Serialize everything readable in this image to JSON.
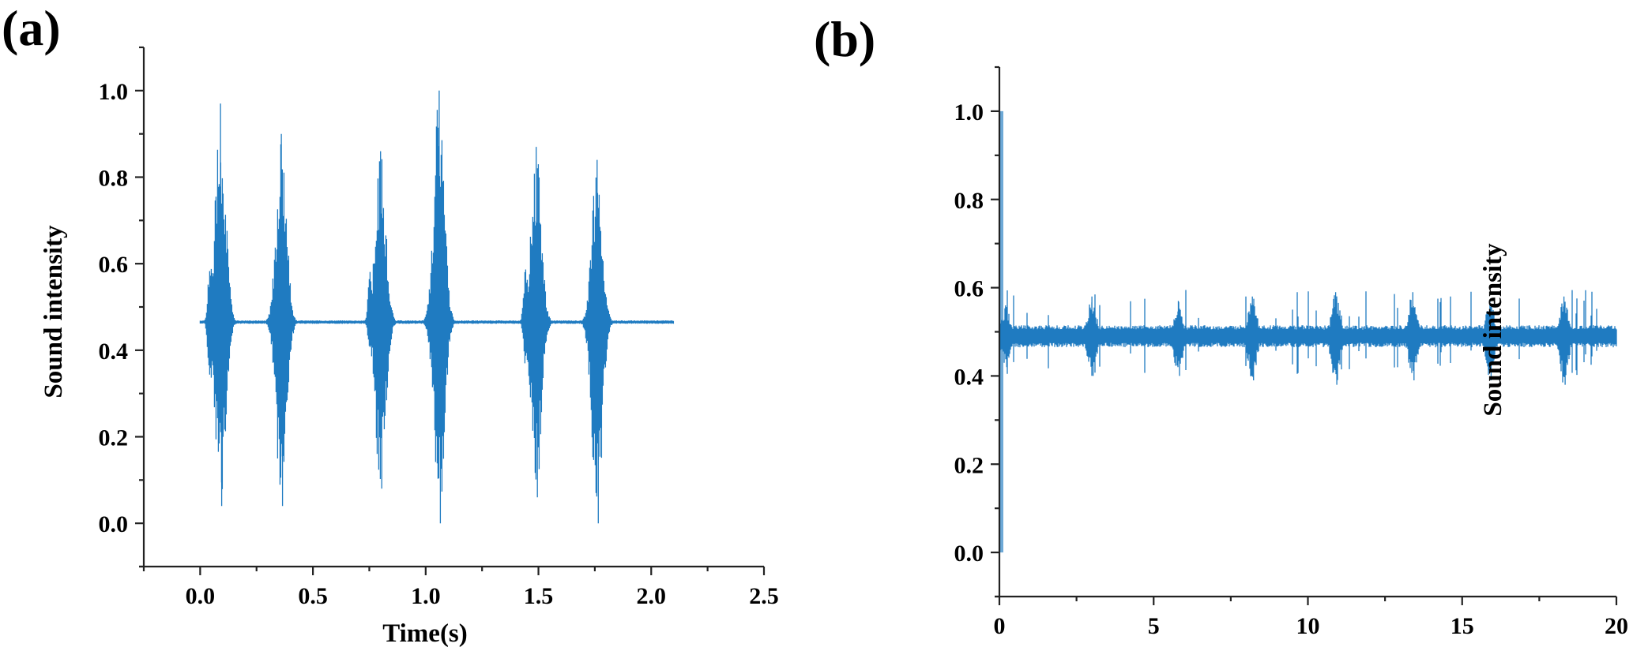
{
  "figure": {
    "panels": [
      {
        "label": "(a)"
      },
      {
        "label": "(b)"
      }
    ]
  },
  "colors": {
    "waveform": "#1f7bc1",
    "axis": "#222222"
  },
  "chart_data": [
    {
      "panel": "(a)",
      "type": "line",
      "title": "",
      "xlabel": "Time(s)",
      "ylabel": "Sound intensity",
      "xlim": [
        -0.25,
        2.5
      ],
      "ylim": [
        -0.1,
        1.1
      ],
      "xticks": [
        0.0,
        0.5,
        1.0,
        1.5,
        2.0,
        2.5
      ],
      "xtick_labels": [
        "0.0",
        "0.5",
        "1.0",
        "1.5",
        "2.0",
        "2.5"
      ],
      "yticks": [
        0.0,
        0.2,
        0.4,
        0.6,
        0.8,
        1.0
      ],
      "ytick_labels": [
        "0.0",
        "0.2",
        "0.4",
        "0.6",
        "0.8",
        "1.0"
      ],
      "grid": false,
      "legend": null,
      "signal_range": [
        0.0,
        2.1
      ],
      "baseline": 0.465,
      "bursts": [
        {
          "time": 0.09,
          "max": 0.97,
          "min": 0.04,
          "precursor_max": 0.62,
          "precursor_min": 0.31
        },
        {
          "time": 0.36,
          "max": 0.9,
          "min": 0.04
        },
        {
          "time": 0.8,
          "max": 0.86,
          "min": 0.08,
          "precursor_max": 0.59,
          "precursor_min": 0.39
        },
        {
          "time": 1.06,
          "max": 1.0,
          "min": 0.0
        },
        {
          "time": 1.49,
          "max": 0.87,
          "min": 0.06,
          "precursor_max": 0.61,
          "precursor_min": 0.35
        },
        {
          "time": 1.76,
          "max": 0.84,
          "min": 0.0
        }
      ]
    },
    {
      "panel": "(b)",
      "type": "line",
      "title": "",
      "xlabel": "",
      "ylabel": "Sound intensity",
      "xlim": [
        0,
        20
      ],
      "ylim": [
        -0.1,
        1.1
      ],
      "xticks": [
        0,
        5,
        10,
        15,
        20
      ],
      "xtick_labels": [
        "0",
        "5",
        "10",
        "15",
        "20"
      ],
      "yticks": [
        0.0,
        0.2,
        0.4,
        0.6,
        0.8,
        1.0
      ],
      "ytick_labels": [
        "0.0",
        "0.2",
        "0.4",
        "0.6",
        "0.8",
        "1.0"
      ],
      "grid": false,
      "legend": null,
      "signal_range": [
        0,
        20
      ],
      "baseline": 0.49,
      "initial_spike": {
        "time": 0.05,
        "max": 1.0,
        "min": 0.0
      },
      "noise_band": [
        0.465,
        0.515
      ],
      "bursts": [
        {
          "time": 0.2,
          "max": 0.56,
          "min": 0.42
        },
        {
          "time": 3.0,
          "max": 0.58,
          "min": 0.4
        },
        {
          "time": 5.8,
          "max": 0.57,
          "min": 0.4
        },
        {
          "time": 8.2,
          "max": 0.58,
          "min": 0.39
        },
        {
          "time": 10.9,
          "max": 0.59,
          "min": 0.38
        },
        {
          "time": 13.4,
          "max": 0.59,
          "min": 0.39
        },
        {
          "time": 15.9,
          "max": 0.57,
          "min": 0.39
        },
        {
          "time": 18.3,
          "max": 0.58,
          "min": 0.38
        }
      ]
    }
  ]
}
